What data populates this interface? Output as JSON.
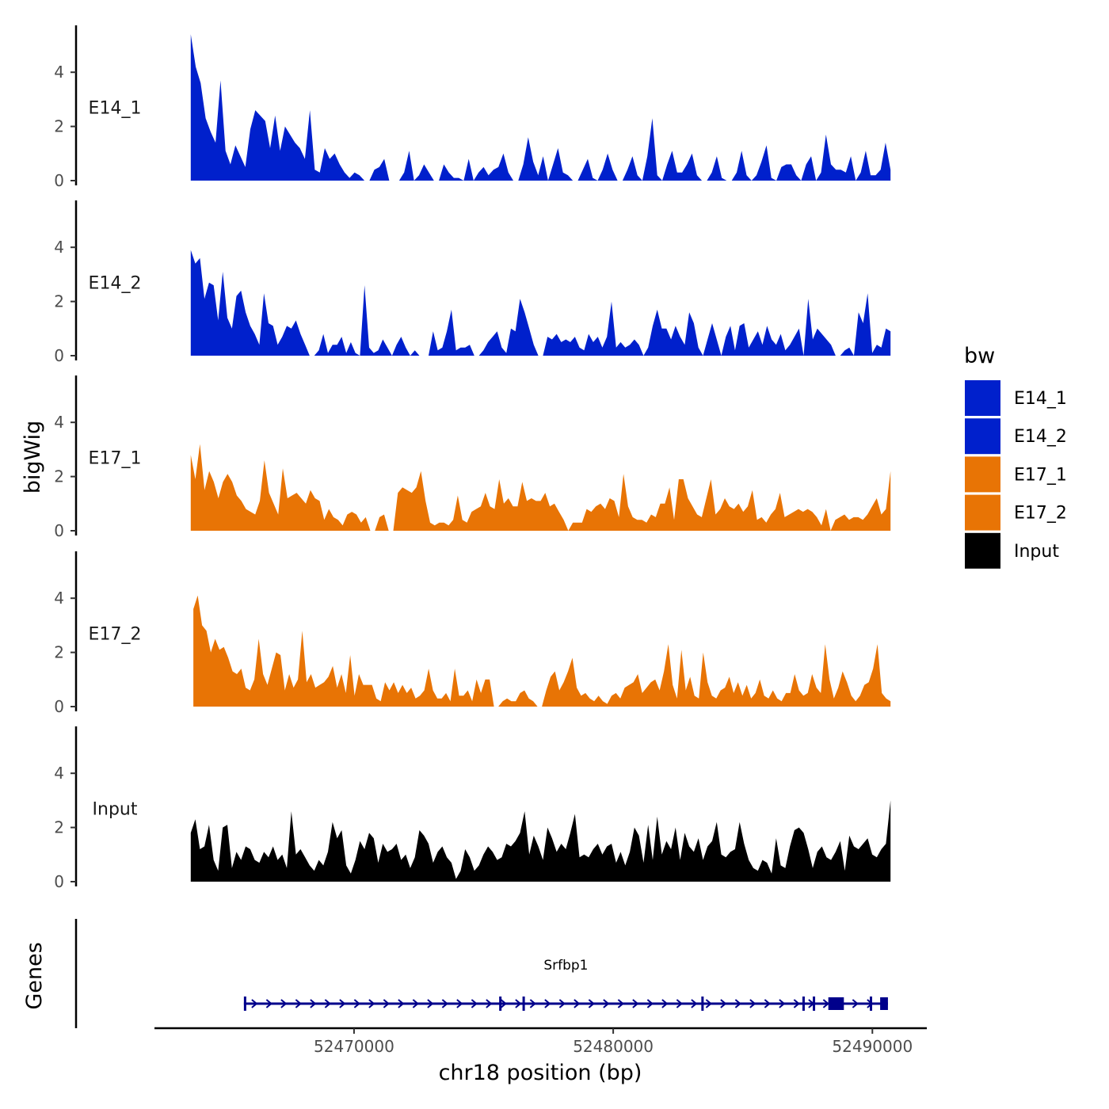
{
  "chart_data": {
    "type": "area",
    "title": "",
    "xlabel": "chr18 position (bp)",
    "ylabel": "bigWig",
    "genes_label": "Genes",
    "x_ticks": [
      52470000,
      52480000,
      52490000
    ],
    "x_tick_labels": [
      "52470000",
      "52480000",
      "52490000"
    ],
    "xlim": [
      52462300,
      52492100
    ],
    "ylim": [
      0,
      5.6
    ],
    "y_ticks": [
      0,
      2,
      4
    ],
    "y_tick_labels": [
      "0",
      "2",
      "4"
    ],
    "legend": {
      "title": "bw",
      "position": "right",
      "entries": [
        {
          "label": "E14_1",
          "color": "#0020CC"
        },
        {
          "label": "E14_2",
          "color": "#0020CC"
        },
        {
          "label": "E17_1",
          "color": "#E87405"
        },
        {
          "label": "E17_2",
          "color": "#E87405"
        },
        {
          "label": "Input",
          "color": "#000000"
        }
      ]
    },
    "series": [
      {
        "name": "E14_1",
        "color": "#0020CC",
        "x_start": 52463700,
        "x_end": 52490700,
        "values": [
          5.4,
          4.2,
          3.6,
          2.3,
          1.8,
          1.4,
          3.7,
          1.1,
          0.6,
          1.3,
          0.9,
          0.5,
          1.9,
          2.6,
          2.4,
          2.2,
          1.2,
          2.4,
          1.1,
          2.0,
          1.7,
          1.4,
          1.2,
          0.8,
          2.6,
          0.4,
          0.3,
          1.2,
          0.8,
          1.0,
          0.6,
          0.3,
          0.1,
          0.3,
          0.2,
          0,
          0,
          0.4,
          0.5,
          0.8,
          0,
          0,
          0,
          0.3,
          1.1,
          0,
          0.2,
          0.6,
          0.3,
          0,
          0,
          0.6,
          0.3,
          0.1,
          0.1,
          0,
          0.8,
          0,
          0.3,
          0.5,
          0.2,
          0.4,
          0.5,
          1.0,
          0.3,
          0,
          0,
          0.6,
          1.6,
          0.7,
          0.2,
          0.9,
          0,
          0.6,
          1.2,
          0.3,
          0.2,
          0,
          0,
          0.4,
          0.8,
          0.1,
          0,
          0.4,
          1.0,
          0.4,
          0,
          0,
          0.4,
          0.9,
          0.2,
          0,
          0.9,
          2.3,
          0.2,
          0,
          0.6,
          1.1,
          0.3,
          0.3,
          0.6,
          1.0,
          0.2,
          0,
          0,
          0.3,
          0.9,
          0.1,
          0,
          0,
          0.3,
          1.1,
          0.2,
          0,
          0.2,
          0.7,
          1.3,
          0.1,
          0,
          0.5,
          0.6,
          0.6,
          0.2,
          0,
          0.6,
          0.9,
          0,
          0.3,
          1.7,
          0.6,
          0.4,
          0.4,
          0.3,
          0.9,
          0,
          0.3,
          1.1,
          0.2,
          0.2,
          0.4,
          1.4,
          0.4
        ]
      },
      {
        "name": "E14_2",
        "color": "#0020CC",
        "x_start": 52463700,
        "x_end": 52490700,
        "values": [
          3.9,
          3.4,
          3.6,
          2.1,
          2.7,
          2.6,
          1.3,
          3.1,
          1.4,
          1.0,
          2.2,
          2.4,
          1.6,
          1.1,
          0.8,
          0.4,
          2.3,
          1.2,
          1.1,
          0.4,
          0.7,
          1.1,
          1.0,
          1.3,
          0.8,
          0.4,
          0,
          0,
          0.2,
          0.8,
          0.1,
          0.4,
          0.4,
          0.7,
          0.1,
          0.5,
          0.1,
          0,
          2.6,
          0.3,
          0.1,
          0.2,
          0.6,
          0.3,
          0,
          0.4,
          0.7,
          0.3,
          0,
          0.2,
          0,
          0,
          0,
          0.9,
          0.2,
          0.3,
          0.9,
          1.7,
          0.2,
          0.3,
          0.3,
          0.4,
          0,
          0,
          0.2,
          0.5,
          0.7,
          0.9,
          0.3,
          0.1,
          1.0,
          0.9,
          2.1,
          1.6,
          1.0,
          0.4,
          0,
          0,
          0.7,
          0.6,
          0.8,
          0.5,
          0.6,
          0.5,
          0.7,
          0.3,
          0.2,
          0.8,
          0.5,
          0.7,
          0.3,
          0.7,
          2.0,
          0.3,
          0.5,
          0.3,
          0.4,
          0.6,
          0.4,
          0,
          0.3,
          1.1,
          1.7,
          1.0,
          1.0,
          0.6,
          1.1,
          0.7,
          0.4,
          1.6,
          1.2,
          0.3,
          0,
          0.6,
          1.2,
          0.6,
          0,
          0.7,
          1.1,
          0.2,
          1.1,
          1.2,
          0.3,
          0.6,
          0.9,
          0.4,
          1.1,
          0.6,
          0.4,
          0.8,
          0.2,
          0.4,
          0.7,
          1.0,
          0,
          2.1,
          0.6,
          1.0,
          0.8,
          0.6,
          0.4,
          0,
          0,
          0.2,
          0.3,
          0,
          1.6,
          1.2,
          2.3,
          0.1,
          0.4,
          0.3,
          1.0,
          0.9
        ]
      },
      {
        "name": "E17_1",
        "color": "#E87405",
        "x_start": 52463700,
        "x_end": 52490700,
        "values": [
          2.8,
          1.9,
          3.2,
          1.5,
          2.2,
          1.8,
          1.2,
          1.8,
          2.1,
          1.8,
          1.3,
          1.1,
          0.8,
          0.7,
          0.6,
          1.1,
          2.6,
          1.4,
          1.0,
          0.6,
          2.3,
          1.2,
          1.3,
          1.4,
          1.2,
          1.0,
          1.5,
          1.2,
          1.1,
          0.4,
          0.8,
          0.5,
          0.4,
          0.2,
          0.6,
          0.7,
          0.6,
          0.3,
          0.5,
          0,
          0,
          0.5,
          0.6,
          0,
          0,
          1.4,
          1.6,
          1.5,
          1.4,
          1.6,
          2.2,
          1.1,
          0.3,
          0.2,
          0.3,
          0.3,
          0.2,
          0.4,
          1.3,
          0.4,
          0.3,
          0.7,
          0.8,
          0.9,
          1.4,
          0.9,
          0.8,
          1.9,
          1.0,
          1.2,
          0.9,
          0.9,
          1.8,
          1.1,
          1.2,
          1.1,
          1.1,
          1.4,
          0.9,
          1.0,
          0.7,
          0.4,
          0,
          0.3,
          0.3,
          0.3,
          0.8,
          0.7,
          0.9,
          1.0,
          0.8,
          1.2,
          1.1,
          0.5,
          2.1,
          0.9,
          0.5,
          0.4,
          0.4,
          0.3,
          0.6,
          0.5,
          1.0,
          1.0,
          1.6,
          0.4,
          1.9,
          1.9,
          1.2,
          0.9,
          0.6,
          0.5,
          1.2,
          1.9,
          0.6,
          0.8,
          1.2,
          0.9,
          0.8,
          1.0,
          0.7,
          0.9,
          1.5,
          0.4,
          0.5,
          0.3,
          0.6,
          0.8,
          1.4,
          0.5,
          0.6,
          0.7,
          0.8,
          0.7,
          0.8,
          0.7,
          0.5,
          0.2,
          0.8,
          0,
          0.4,
          0.5,
          0.6,
          0.4,
          0.5,
          0.5,
          0.4,
          0.6,
          0.9,
          1.2,
          0.6,
          0.8,
          2.2
        ]
      },
      {
        "name": "E17_2",
        "color": "#E87405",
        "x_start": 52463800,
        "x_end": 52490700,
        "values": [
          3.6,
          4.1,
          3.0,
          2.8,
          2.0,
          2.5,
          2.1,
          2.2,
          1.8,
          1.3,
          1.2,
          1.4,
          0.7,
          0.6,
          1.0,
          2.5,
          1.2,
          0.8,
          1.4,
          2.0,
          1.9,
          0.6,
          1.2,
          0.7,
          1.0,
          2.8,
          0.9,
          1.2,
          0.7,
          0.8,
          0.9,
          1.1,
          1.5,
          0.7,
          1.2,
          0.5,
          1.9,
          0.4,
          1.2,
          0.8,
          0.8,
          0.8,
          0.3,
          0.2,
          0.9,
          0.6,
          0.9,
          0.5,
          0.8,
          0.5,
          0.7,
          0.3,
          0.4,
          0.6,
          1.4,
          0.6,
          0.3,
          0.3,
          0.5,
          0.2,
          1.4,
          0.4,
          0.4,
          0.6,
          0.2,
          1.0,
          0.5,
          1.0,
          1.0,
          0,
          0,
          0.2,
          0.3,
          0.2,
          0.2,
          0.5,
          0.6,
          0.3,
          0.2,
          0,
          0,
          0.6,
          1.1,
          1.3,
          0.6,
          0.9,
          1.3,
          1.8,
          0.7,
          0.4,
          0.5,
          0.3,
          0.2,
          0.4,
          0.2,
          0.1,
          0.4,
          0.5,
          0.3,
          0.7,
          0.8,
          0.9,
          1.2,
          0.5,
          0.7,
          0.9,
          1.0,
          0.6,
          1.3,
          2.3,
          0.8,
          0.3,
          2.1,
          0.6,
          1.1,
          0.4,
          0.3,
          2.0,
          0.9,
          0.4,
          0.3,
          0.6,
          0.7,
          1.1,
          0.5,
          0.9,
          0.4,
          0.8,
          0.3,
          0.5,
          1.0,
          0.4,
          0.3,
          0.6,
          0.3,
          0.2,
          0.5,
          0.5,
          1.2,
          0.6,
          0.4,
          0.5,
          1.2,
          0.7,
          0.5,
          2.3,
          1.0,
          0.3,
          0.7,
          1.3,
          0.9,
          0.4,
          0.2,
          0.4,
          0.8,
          0.9,
          1.4,
          2.3,
          0.5,
          0.3,
          0.2
        ]
      },
      {
        "name": "Input",
        "color": "#000000",
        "x_start": 52463700,
        "x_end": 52490700,
        "values": [
          1.8,
          2.3,
          1.2,
          1.3,
          2.1,
          0.8,
          0.4,
          2.0,
          2.1,
          0.5,
          1.1,
          0.8,
          1.3,
          1.2,
          0.8,
          0.7,
          1.1,
          0.9,
          1.3,
          0.8,
          1.0,
          0.5,
          2.6,
          1.0,
          1.2,
          0.9,
          0.6,
          0.4,
          0.8,
          0.6,
          1.1,
          2.2,
          1.6,
          1.9,
          0.6,
          0.3,
          0.8,
          1.5,
          1.2,
          1.8,
          1.6,
          0.7,
          1.4,
          1.1,
          1.2,
          1.4,
          0.8,
          1.0,
          0.5,
          0.9,
          1.9,
          1.7,
          1.4,
          0.7,
          1.1,
          1.3,
          0.9,
          0.7,
          0.1,
          0.4,
          1.2,
          0.9,
          0.4,
          0.6,
          1.0,
          1.3,
          1.1,
          0.8,
          0.9,
          1.4,
          1.3,
          1.5,
          1.8,
          2.6,
          1.0,
          1.7,
          1.3,
          0.8,
          2.0,
          1.6,
          1.1,
          1.4,
          1.2,
          1.8,
          2.5,
          0.9,
          1.0,
          0.9,
          1.2,
          1.4,
          1.0,
          1.3,
          1.4,
          0.7,
          1.1,
          0.6,
          1.1,
          2.0,
          1.7,
          0.7,
          2.1,
          0.8,
          2.4,
          1.0,
          1.5,
          1.2,
          2.0,
          0.8,
          1.8,
          1.3,
          1.1,
          1.6,
          0.8,
          1.3,
          1.5,
          2.2,
          1.0,
          0.9,
          1.1,
          1.2,
          2.2,
          1.4,
          0.8,
          0.5,
          0.4,
          0.8,
          0.7,
          0.3,
          1.6,
          0.6,
          0.5,
          1.3,
          1.9,
          2.0,
          1.8,
          1.2,
          0.5,
          1.1,
          1.3,
          0.9,
          0.8,
          1.1,
          1.5,
          0.4,
          1.7,
          1.3,
          1.2,
          1.4,
          1.6,
          1.0,
          0.9,
          1.2,
          1.4,
          3.0
        ]
      }
    ],
    "genes": [
      {
        "name": "Srfbp1",
        "color": "#00008B",
        "strand": "+",
        "start": 52465750,
        "end": 52490600,
        "exons": [
          [
            52465750,
            52465820
          ],
          [
            52475600,
            52475640
          ],
          [
            52476500,
            52476560
          ],
          [
            52483400,
            52483440
          ],
          [
            52487300,
            52487340
          ],
          [
            52487700,
            52487740
          ],
          [
            52488300,
            52488900
          ],
          [
            52489900,
            52489940
          ],
          [
            52490300,
            52490600
          ]
        ]
      }
    ]
  }
}
